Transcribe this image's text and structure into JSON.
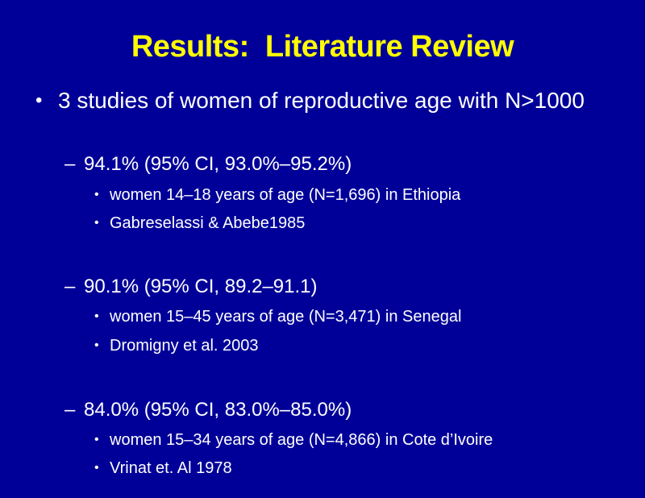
{
  "slide": {
    "title": "Results:  Literature Review",
    "main_bullet": "3 studies of women of reproductive age with N>1000",
    "studies": [
      {
        "estimate": "94.1% (95% CI, 93.0%–95.2%)",
        "population": "women 14–18 years of age (N=1,696) in Ethiopia",
        "citation": "Gabreselassi & Abebe1985"
      },
      {
        "estimate": "90.1% (95% CI, 89.2–91.1)",
        "population": "women 15–45 years of age (N=3,471) in Senegal",
        "citation": "Dromigny et al. 2003"
      },
      {
        "estimate": "84.0% (95% CI, 83.0%–85.0%)",
        "population": "women 15–34 years of age (N=4,866) in Cote d’Ivoire",
        "citation": "Vrinat et. Al 1978"
      }
    ]
  },
  "symbols": {
    "bullet": "•",
    "dash": "–"
  },
  "colors": {
    "background": "#000099",
    "title": "#ffff00",
    "text": "#ffffff"
  }
}
